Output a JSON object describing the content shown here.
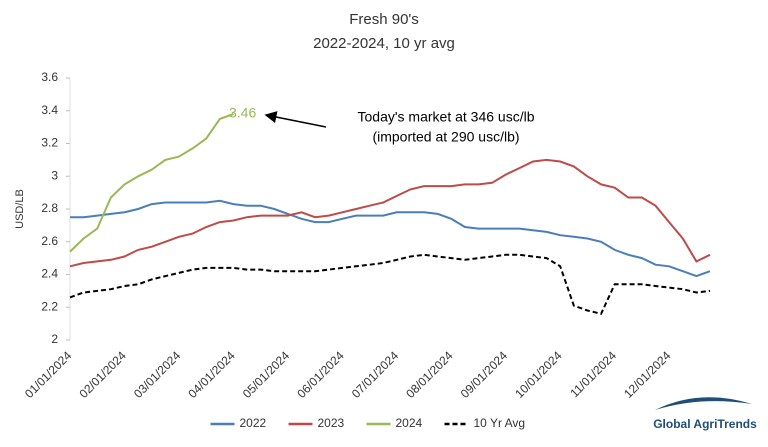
{
  "chart_data": {
    "type": "line",
    "title": "Fresh 90's",
    "subtitle": "2022-2024, 10 yr avg",
    "y_label": "USD/LB",
    "categories": [
      "01/01/2024",
      null,
      null,
      null,
      "02/01/2024",
      null,
      null,
      null,
      "03/01/2024",
      null,
      null,
      null,
      "04/01/2024",
      null,
      null,
      null,
      "05/01/2024",
      null,
      null,
      null,
      "06/01/2024",
      null,
      null,
      null,
      "07/01/2024",
      null,
      null,
      null,
      "08/01/2024",
      null,
      null,
      null,
      "09/01/2024",
      null,
      null,
      null,
      "10/01/2024",
      null,
      null,
      null,
      "11/01/2024",
      null,
      null,
      null,
      "12/01/2024",
      null,
      null,
      null
    ],
    "series": [
      {
        "name": "2022",
        "color": "#4a7ebb",
        "dash": false,
        "values": [
          2.75,
          2.75,
          2.76,
          2.77,
          2.78,
          2.8,
          2.83,
          2.84,
          2.84,
          2.84,
          2.84,
          2.85,
          2.83,
          2.82,
          2.82,
          2.8,
          2.77,
          2.74,
          2.72,
          2.72,
          2.74,
          2.76,
          2.76,
          2.76,
          2.78,
          2.78,
          2.78,
          2.77,
          2.74,
          2.69,
          2.68,
          2.68,
          2.68,
          2.68,
          2.67,
          2.66,
          2.64,
          2.63,
          2.62,
          2.6,
          2.55,
          2.52,
          2.5,
          2.46,
          2.45,
          2.42,
          2.39,
          2.42
        ]
      },
      {
        "name": "2023",
        "color": "#be4b48",
        "dash": false,
        "values": [
          2.45,
          2.47,
          2.48,
          2.49,
          2.51,
          2.55,
          2.57,
          2.6,
          2.63,
          2.65,
          2.69,
          2.72,
          2.73,
          2.75,
          2.76,
          2.76,
          2.76,
          2.78,
          2.75,
          2.76,
          2.78,
          2.8,
          2.82,
          2.84,
          2.88,
          2.92,
          2.94,
          2.94,
          2.94,
          2.95,
          2.95,
          2.96,
          3.01,
          3.05,
          3.09,
          3.1,
          3.09,
          3.06,
          3.0,
          2.95,
          2.93,
          2.87,
          2.87,
          2.82,
          2.72,
          2.62,
          2.48,
          2.52
        ]
      },
      {
        "name": "2024",
        "color": "#98b954",
        "dash": false,
        "values": [
          2.54,
          2.62,
          2.68,
          2.87,
          2.95,
          3.0,
          3.04,
          3.1,
          3.12,
          3.17,
          3.23,
          3.35,
          3.38,
          null,
          null,
          null,
          null,
          null,
          null,
          null,
          null,
          null,
          null,
          null,
          null,
          null,
          null,
          null,
          null,
          null,
          null,
          null,
          null,
          null,
          null,
          null,
          null,
          null,
          null,
          null,
          null,
          null,
          null,
          null,
          null,
          null,
          null,
          null
        ]
      },
      {
        "name": "10 Yr Avg",
        "color": "#000000",
        "dash": true,
        "values": [
          2.26,
          2.29,
          2.3,
          2.31,
          2.33,
          2.34,
          2.37,
          2.39,
          2.41,
          2.43,
          2.44,
          2.44,
          2.44,
          2.43,
          2.43,
          2.42,
          2.42,
          2.42,
          2.42,
          2.43,
          2.44,
          2.45,
          2.46,
          2.47,
          2.49,
          2.51,
          2.52,
          2.51,
          2.5,
          2.49,
          2.5,
          2.51,
          2.52,
          2.52,
          2.51,
          2.5,
          2.45,
          2.21,
          2.18,
          2.16,
          2.34,
          2.34,
          2.34,
          2.33,
          2.32,
          2.31,
          2.29,
          2.3
        ]
      }
    ],
    "ylim": [
      2,
      3.6
    ],
    "yticks": [
      2,
      2.2,
      2.4,
      2.6,
      2.8,
      3,
      3.2,
      3.4,
      3.6
    ],
    "annotations": [
      {
        "text": "3.46"
      },
      {
        "text": "Today's market at 346 usc/lb"
      },
      {
        "text": "(imported at 290 usc/lb)"
      }
    ],
    "logo": "Global AgriTrends"
  }
}
